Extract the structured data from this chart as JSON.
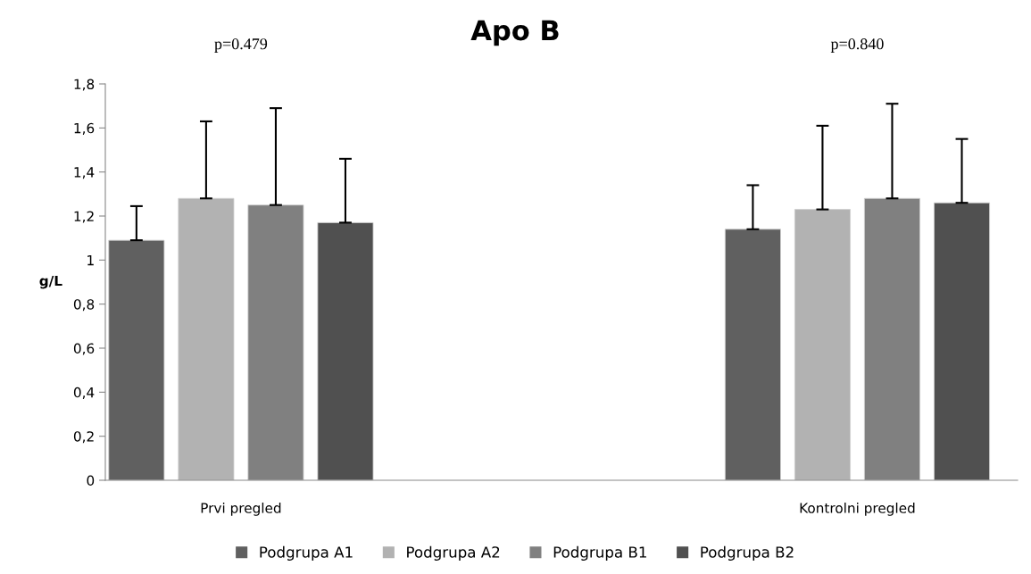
{
  "chart_data": {
    "type": "bar",
    "title": "Apo B",
    "ylabel": "g/L",
    "categories": [
      "Prvi pregled",
      "Kontrolni pregled"
    ],
    "series": [
      {
        "name": "Podgrupa A1",
        "color": "#606060",
        "values": [
          1.09,
          1.14
        ],
        "errors": [
          [
            1.09,
            1.245
          ],
          [
            1.14,
            1.34
          ]
        ]
      },
      {
        "name": "Podgrupa A2",
        "color": "#b2b2b2",
        "values": [
          1.28,
          1.23
        ],
        "errors": [
          [
            1.28,
            1.63
          ],
          [
            1.23,
            1.61
          ]
        ]
      },
      {
        "name": "Podgrupa B1",
        "color": "#808080",
        "values": [
          1.25,
          1.28
        ],
        "errors": [
          [
            1.25,
            1.69
          ],
          [
            1.28,
            1.71
          ]
        ]
      },
      {
        "name": "Podgrupa B2",
        "color": "#505050",
        "values": [
          1.17,
          1.26
        ],
        "errors": [
          [
            1.17,
            1.46
          ],
          [
            1.26,
            1.55
          ]
        ]
      }
    ],
    "annotations": [
      "p=0.479",
      "p=0.840"
    ],
    "ylim": [
      0,
      1.8
    ],
    "yticks": [
      0,
      {
        "value": 0.2,
        "label": "0,2"
      },
      {
        "value": 0.4,
        "label": "0,4"
      },
      {
        "value": 0.6,
        "label": "0,6"
      },
      {
        "value": 0.8,
        "label": "0,8"
      },
      1,
      {
        "value": 1.2,
        "label": "1,2"
      },
      {
        "value": 1.4,
        "label": "1,4"
      },
      {
        "value": 1.6,
        "label": "1,6"
      },
      {
        "value": 1.8,
        "label": "1,8"
      }
    ],
    "grid": false,
    "legend": "bottom"
  }
}
